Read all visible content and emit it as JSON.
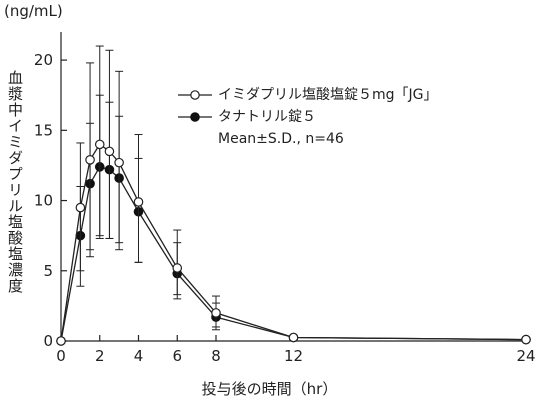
{
  "chart_data": {
    "type": "line",
    "unit_label": "(ng/mL)",
    "ylabel": "血漿中イミダプリル塩酸塩濃度",
    "xlabel": "投与後の時間（hr）",
    "x": [
      0,
      1,
      1.5,
      2,
      2.5,
      3,
      4,
      6,
      8,
      12,
      24
    ],
    "x_ticks": [
      0,
      2,
      4,
      6,
      8,
      12,
      24
    ],
    "y_ticks": [
      0,
      5,
      10,
      15,
      20
    ],
    "xlim": [
      0,
      24
    ],
    "ylim": [
      0,
      22
    ],
    "grid": false,
    "legend_position": "top-right",
    "series": [
      {
        "name": "イミダプリル塩酸塩錠５mg「JG」",
        "marker": "open-circle",
        "values": [
          0,
          9.5,
          12.9,
          14.0,
          13.5,
          12.7,
          9.9,
          5.2,
          2.0,
          0.25,
          0.1
        ],
        "err_upper": [
          0,
          14.1,
          19.8,
          21.0,
          20.7,
          19.2,
          14.7,
          7.9,
          3.2,
          0,
          0
        ],
        "err_lower": [
          0,
          5.0,
          6.5,
          7.5,
          7.3,
          6.5,
          5.6,
          3.3,
          1.0,
          0,
          0
        ]
      },
      {
        "name": "タナトリル錠５",
        "marker": "filled-circle",
        "values": [
          0,
          7.5,
          11.2,
          12.4,
          12.2,
          11.6,
          9.2,
          4.8,
          1.7,
          0.25,
          0.1
        ],
        "err_upper": [
          0,
          11.0,
          15.5,
          17.5,
          17.0,
          16.0,
          13.0,
          7.0,
          2.7,
          0,
          0
        ],
        "err_lower": [
          0,
          3.9,
          6.0,
          7.3,
          7.3,
          7.0,
          5.6,
          3.0,
          0.8,
          0,
          0
        ]
      }
    ],
    "annotation": "Mean±S.D., n=46",
    "colors": {
      "line": "#222222",
      "open_fill": "#ffffff",
      "filled": "#111111"
    }
  }
}
